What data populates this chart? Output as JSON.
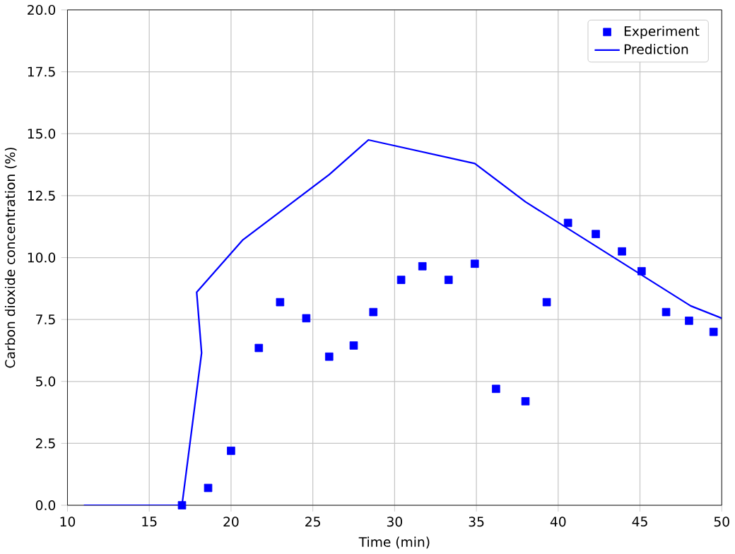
{
  "chart_data": {
    "type": "scatter",
    "xlabel": "Time (min)",
    "ylabel": "Carbon dioxide concentration (%)",
    "xlim": [
      10,
      50
    ],
    "ylim": [
      0,
      20
    ],
    "xticks": [
      10,
      15,
      20,
      25,
      30,
      35,
      40,
      45,
      50
    ],
    "yticks": [
      {
        "value": 0,
        "label": "0.0"
      },
      {
        "value": 2.5,
        "label": "2.5"
      },
      {
        "value": 5,
        "label": "5.0"
      },
      {
        "value": 7.5,
        "label": "7.5"
      },
      {
        "value": 10,
        "label": "10.0"
      },
      {
        "value": 12.5,
        "label": "12.5"
      },
      {
        "value": 15,
        "label": "15.0"
      },
      {
        "value": 17.5,
        "label": "17.5"
      },
      {
        "value": 20,
        "label": "20.0"
      }
    ],
    "grid": true,
    "legend": "top right",
    "series": [
      {
        "name": "Experiment",
        "marker": "square",
        "color": "#0000ff",
        "x": [
          17.0,
          18.6,
          20.0,
          21.7,
          23.0,
          24.6,
          26.0,
          27.5,
          28.7,
          30.4,
          31.7,
          33.3,
          34.9,
          36.2,
          38.0,
          39.3,
          40.6,
          42.3,
          43.9,
          45.1,
          46.6,
          48.0,
          49.5
        ],
        "values": [
          0,
          0.7,
          2.2,
          6.35,
          8.2,
          7.55,
          6.0,
          6.45,
          7.8,
          9.1,
          9.65,
          9.1,
          9.75,
          4.7,
          4.2,
          8.2,
          11.4,
          10.95,
          10.25,
          9.45,
          7.8,
          7.45,
          7.0
        ]
      },
      {
        "name": "Prediction",
        "type": "line",
        "marker": "none",
        "line_style": "solid",
        "color": "#0000ff",
        "x": [
          11.0,
          17.0,
          18.2,
          17.9,
          20.7,
          23.4,
          26.0,
          28.4,
          34.9,
          38.0,
          48.1,
          50.0
        ],
        "values": [
          0,
          0,
          6.15,
          8.6,
          10.7,
          12.05,
          13.35,
          14.75,
          13.8,
          12.25,
          8.05,
          7.55
        ]
      }
    ]
  }
}
